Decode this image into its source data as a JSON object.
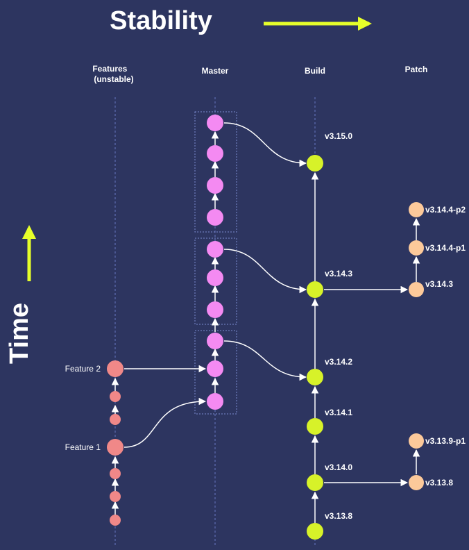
{
  "title_stability": "Stability",
  "title_time": "Time",
  "columns": {
    "features": [
      "Features",
      "(unstable)"
    ],
    "master": "Master",
    "build": "Build",
    "patch": "Patch"
  },
  "feature_labels": {
    "feature_2": "Feature 2",
    "feature_1": "Feature 1"
  },
  "build_versions": {
    "v3_15_0": "v3.15.0",
    "v3_14_3": "v3.14.3",
    "v3_14_2": "v3.14.2",
    "v3_14_1": "v3.14.1",
    "v3_14_0": "v3.14.0",
    "v3_13_8": "v3.13.8"
  },
  "patch_versions": {
    "v3_14_4_p2": "v3.14.4-p2",
    "v3_14_4_p1": "v3.14.4-p1",
    "v3_14_3": "v3.14.3",
    "v3_13_9_p1": "v3.13.9-p1",
    "v3_13_8": "v3.13.8"
  },
  "colors": {
    "background": "#2d3560",
    "feature_node": "#f08888",
    "master_node": "#f48af2",
    "build_node": "#d7f229",
    "patch_node": "#fcc99a",
    "accent_arrow": "#e6ff2a",
    "edge": "#ffffff",
    "guide_line": "#6678c2"
  }
}
